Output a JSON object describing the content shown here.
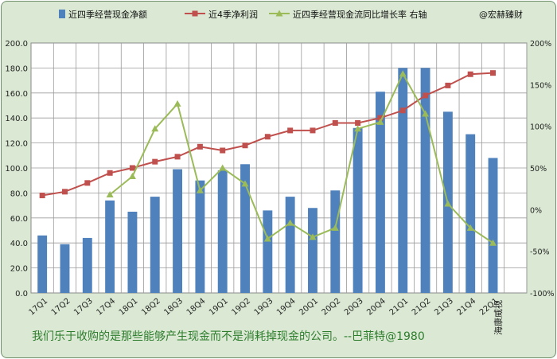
{
  "chart_data": {
    "type": "bar",
    "categories": [
      "17Q1",
      "17Q2",
      "17Q3",
      "17Q4",
      "18Q1",
      "18Q2",
      "18Q3",
      "18Q4",
      "19Q1",
      "19Q2",
      "19Q3",
      "19Q4",
      "20Q1",
      "20Q2",
      "20Q3",
      "20Q4",
      "21Q1",
      "21Q2",
      "21Q3",
      "21Q4",
      "22Q1"
    ],
    "y_left": {
      "min": 0,
      "max": 200,
      "ticks": [
        "0.0",
        "20.0",
        "40.0",
        "60.0",
        "80.0",
        "100.0",
        "120.0",
        "140.0",
        "160.0",
        "180.0",
        "200.0"
      ]
    },
    "y_right": {
      "min": -100,
      "max": 200,
      "ticks": [
        "-100%",
        "-50%",
        "0%",
        "50%",
        "100%",
        "150%",
        "200%"
      ]
    },
    "grid": true,
    "legend_position": "top",
    "series": [
      {
        "name": "近四季经营现金净额",
        "type": "bar",
        "axis": "left",
        "color": "#4f81bd",
        "values": [
          46,
          39,
          44,
          74,
          65,
          77,
          99,
          90,
          98,
          103,
          66,
          77,
          68,
          82,
          132,
          161,
          180,
          180,
          145,
          127,
          108
        ]
      },
      {
        "name": "近4季净利润",
        "type": "line",
        "axis": "left",
        "color": "#c0504d",
        "marker": "square",
        "values": [
          78,
          81,
          88,
          96,
          100,
          105,
          109,
          117,
          114,
          118,
          125,
          130,
          130,
          136,
          136,
          140,
          146,
          158,
          166,
          175,
          176
        ]
      },
      {
        "name": "近四季经营现金流同比增长率  右轴",
        "type": "line",
        "axis": "right",
        "color": "#9bbb59",
        "marker": "triangle",
        "values": [
          null,
          null,
          null,
          18,
          40,
          97,
          127,
          23,
          50,
          31,
          -35,
          -16,
          -33,
          -22,
          97,
          105,
          163,
          115,
          7,
          -22,
          -40
        ]
      }
    ],
    "annotations": [
      "@宏赫臻财",
      "海康威视"
    ],
    "footer": "我们乐于收购的是那些能够产生现金而不是消耗掉现金的公司。--巴菲特@1980"
  }
}
